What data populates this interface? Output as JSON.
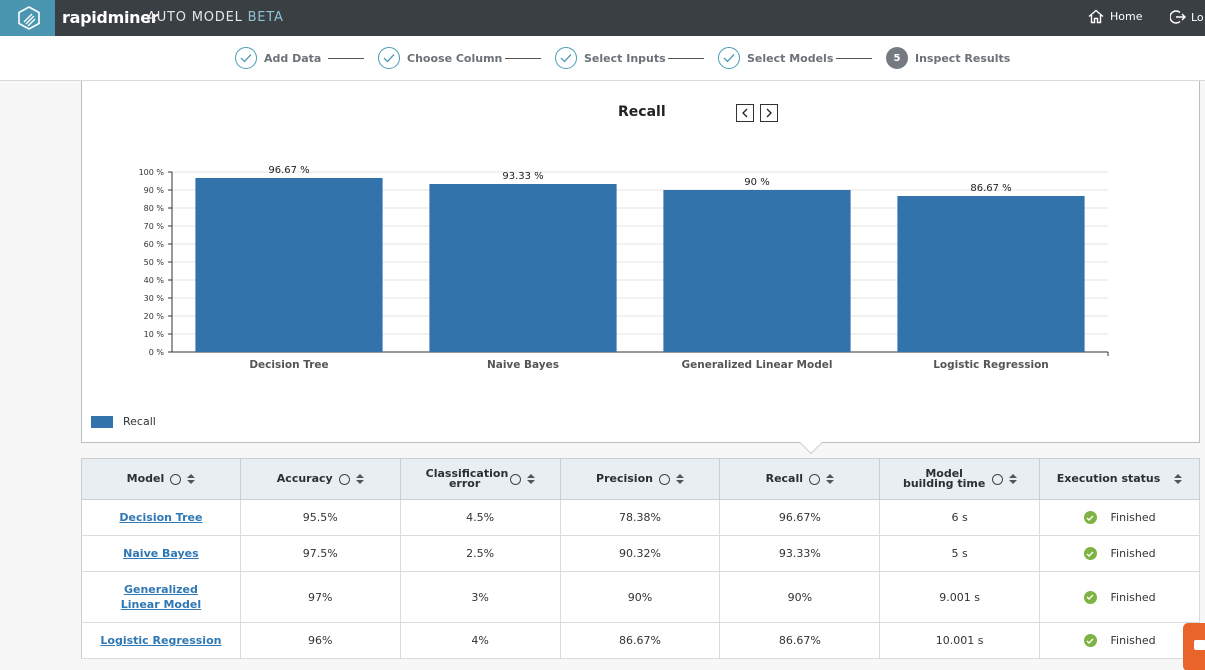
{
  "app": {
    "brand": "rapidminer",
    "product": "AUTO MODEL",
    "product_tag": "BETA"
  },
  "header": {
    "home_label": "Home",
    "logout_label": "Lo"
  },
  "wizard": {
    "steps": [
      {
        "label": "Add Data",
        "state": "done"
      },
      {
        "label": "Choose Column",
        "state": "done"
      },
      {
        "label": "Select Inputs",
        "state": "done"
      },
      {
        "label": "Select Models",
        "state": "done"
      },
      {
        "label": "Inspect Results",
        "state": "current",
        "number": "5"
      }
    ]
  },
  "chart": {
    "title": "Recall",
    "legend_label": "Recall",
    "bar_color": "#3173aa"
  },
  "chart_data": {
    "type": "bar",
    "title": "Recall",
    "categories": [
      "Decision Tree",
      "Naive Bayes",
      "Generalized Linear Model",
      "Logistic Regression"
    ],
    "series": [
      {
        "name": "Recall",
        "values": [
          96.67,
          93.33,
          90,
          86.67
        ]
      }
    ],
    "value_labels": [
      "96.67 %",
      "93.33 %",
      "90 %",
      "86.67 %"
    ],
    "ylim": [
      0,
      100
    ],
    "yticks": [
      0,
      10,
      20,
      30,
      40,
      50,
      60,
      70,
      80,
      90,
      100
    ],
    "ytick_labels": [
      "0 %",
      "10 %",
      "20 %",
      "30 %",
      "40 %",
      "50 %",
      "60 %",
      "70 %",
      "80 %",
      "90 %",
      "100 %"
    ],
    "grid": true,
    "legend": "bottom-left"
  },
  "table": {
    "columns": [
      {
        "label": "Model",
        "info": true
      },
      {
        "label": "Accuracy",
        "info": true
      },
      {
        "label": "Classification error",
        "info": true
      },
      {
        "label": "Precision",
        "info": true
      },
      {
        "label": "Recall",
        "info": true
      },
      {
        "label": "Model building time",
        "info": true
      },
      {
        "label": "Execution status",
        "info": false
      }
    ],
    "rows": [
      {
        "model": "Decision Tree",
        "accuracy": "95.5%",
        "error": "4.5%",
        "precision": "78.38%",
        "recall": "96.67%",
        "time": "6 s",
        "status": "Finished"
      },
      {
        "model": "Naive Bayes",
        "accuracy": "97.5%",
        "error": "2.5%",
        "precision": "90.32%",
        "recall": "93.33%",
        "time": "5 s",
        "status": "Finished"
      },
      {
        "model": "Generalized Linear Model",
        "accuracy": "97%",
        "error": "3%",
        "precision": "90%",
        "recall": "90%",
        "time": "9.001 s",
        "status": "Finished"
      },
      {
        "model": "Logistic Regression",
        "accuracy": "96%",
        "error": "4%",
        "precision": "86.67%",
        "recall": "86.67%",
        "time": "10.001 s",
        "status": "Finished"
      }
    ]
  },
  "colors": {
    "accent": "#4a96b0",
    "topbar": "#3a3f44",
    "link": "#2f78b4",
    "success": "#7cb342",
    "chat": "#e8642a"
  }
}
